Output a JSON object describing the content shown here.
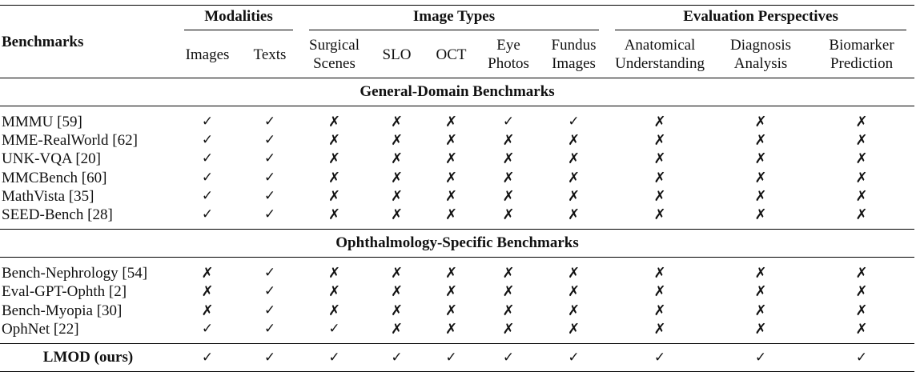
{
  "header": {
    "benchmarks": "Benchmarks",
    "groups": [
      "Modalities",
      "Image Types",
      "Evaluation Perspectives"
    ],
    "columns": [
      [
        "Images"
      ],
      [
        "Texts"
      ],
      [
        "Surgical",
        "Scenes"
      ],
      [
        "SLO"
      ],
      [
        "OCT"
      ],
      [
        "Eye",
        "Photos"
      ],
      [
        "Fundus",
        "Images"
      ],
      [
        "Anatomical",
        "Understanding"
      ],
      [
        "Diagnosis",
        "Analysis"
      ],
      [
        "Biomarker",
        "Prediction"
      ]
    ]
  },
  "symbols": {
    "yes": "✓",
    "no": "✗"
  },
  "sections": [
    {
      "title": "General-Domain Benchmarks",
      "rows": [
        {
          "name": "MMMU [59]",
          "marks": [
            1,
            1,
            0,
            0,
            0,
            1,
            1,
            0,
            0,
            0
          ]
        },
        {
          "name": "MME-RealWorld [62]",
          "marks": [
            1,
            1,
            0,
            0,
            0,
            0,
            0,
            0,
            0,
            0
          ]
        },
        {
          "name": "UNK-VQA [20]",
          "marks": [
            1,
            1,
            0,
            0,
            0,
            0,
            0,
            0,
            0,
            0
          ]
        },
        {
          "name": "MMCBench [60]",
          "marks": [
            1,
            1,
            0,
            0,
            0,
            0,
            0,
            0,
            0,
            0
          ]
        },
        {
          "name": "MathVista [35]",
          "marks": [
            1,
            1,
            0,
            0,
            0,
            0,
            0,
            0,
            0,
            0
          ]
        },
        {
          "name": "SEED-Bench [28]",
          "marks": [
            1,
            1,
            0,
            0,
            0,
            0,
            0,
            0,
            0,
            0
          ]
        }
      ]
    },
    {
      "title": "Ophthalmology-Specific Benchmarks",
      "rows": [
        {
          "name": "Bench-Nephrology [54]",
          "marks": [
            0,
            1,
            0,
            0,
            0,
            0,
            0,
            0,
            0,
            0
          ]
        },
        {
          "name": "Eval-GPT-Ophth [2]",
          "marks": [
            0,
            1,
            0,
            0,
            0,
            0,
            0,
            0,
            0,
            0
          ]
        },
        {
          "name": "Bench-Myopia [30]",
          "marks": [
            0,
            1,
            0,
            0,
            0,
            0,
            0,
            0,
            0,
            0
          ]
        },
        {
          "name": "OphNet [22]",
          "marks": [
            1,
            1,
            1,
            0,
            0,
            0,
            0,
            0,
            0,
            0
          ]
        }
      ]
    }
  ],
  "ours": {
    "name": "LMOD (ours)",
    "marks": [
      1,
      1,
      1,
      1,
      1,
      1,
      1,
      1,
      1,
      1
    ]
  }
}
